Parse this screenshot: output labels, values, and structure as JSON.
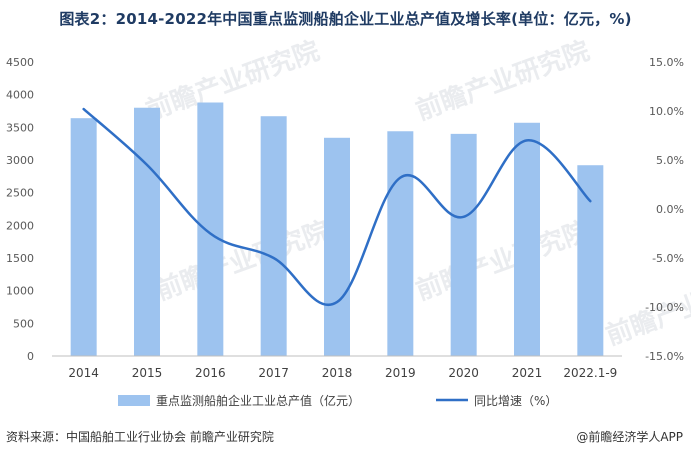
{
  "title": "图表2：2014-2022年中国重点监测船舶企业工业总产值及增长率(单位：亿元，%)",
  "source": "资料来源：中国船舶工业行业协会 前瞻产业研究院",
  "credit": "@前瞻经济学人APP",
  "watermark": "前瞻产业研究院",
  "colors": {
    "bar": "#9dc3ef",
    "line": "#2f6fc6",
    "axis": "#bfbfbf"
  },
  "chart_data": {
    "type": "bar+line",
    "categories": [
      "2014",
      "2015",
      "2016",
      "2017",
      "2018",
      "2019",
      "2020",
      "2021",
      "2022.1-9"
    ],
    "series": [
      {
        "name": "重点监测船舶企业工业总产值（亿元）",
        "type": "bar",
        "axis": "left",
        "values": [
          3640,
          3800,
          3880,
          3670,
          3340,
          3440,
          3400,
          3570,
          2920
        ]
      },
      {
        "name": "同比增速（%）",
        "type": "line",
        "axis": "right",
        "values": [
          10.2,
          4.5,
          -2.5,
          -5.0,
          -9.5,
          3.2,
          -0.8,
          7.0,
          0.8
        ]
      }
    ],
    "y_left": {
      "min": 0,
      "max": 4500,
      "step": 500,
      "tick_labels": [
        "0",
        "500",
        "1000",
        "1500",
        "2000",
        "2500",
        "3000",
        "3500",
        "4000",
        "4500"
      ]
    },
    "y_right": {
      "min": -15,
      "max": 15,
      "step": 5,
      "tick_labels": [
        "-15.0%",
        "-10.0%",
        "-5.0%",
        "0.0%",
        "5.0%",
        "10.0%",
        "15.0%"
      ]
    },
    "legend": [
      "重点监测船舶企业工业总产值（亿元）",
      "同比增速（%）"
    ],
    "legend_position": "bottom"
  }
}
